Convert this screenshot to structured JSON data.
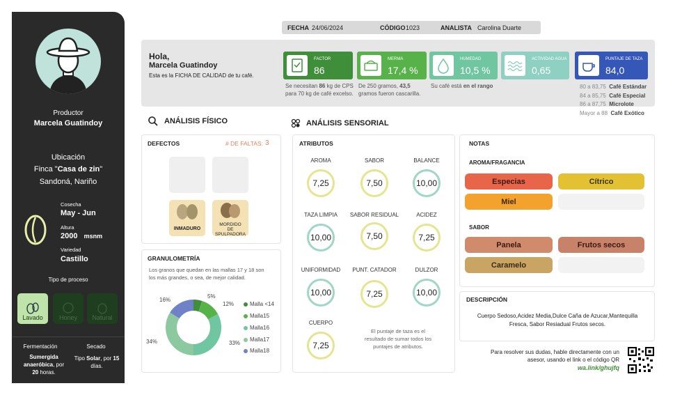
{
  "sidebar": {
    "productor_label": "Productor",
    "productor_name": "Marcela Guatindoy",
    "ubicacion_label": "Ubicación",
    "finca_prefix": "Finca \"",
    "finca_name": "Casa de zin",
    "finca_suffix": "\"",
    "municipio": "Sandoná, Nariño",
    "cosecha_label": "Cosecha",
    "cosecha_value": "May - Jun",
    "altura_label": "Altura",
    "altura_value": "2000",
    "altura_unit": "msnm",
    "variedad_label": "Variedad",
    "variedad_value": "Castillo",
    "proceso_label": "Tipo de proceso",
    "procesos": [
      "Lavado",
      "Honey",
      "Natural"
    ],
    "fermentacion_label": "Fermentación",
    "fermentacion_l1": "Sumergida",
    "fermentacion_l2a": "anaeróbica",
    "fermentacion_l2b": ", por",
    "fermentacion_l3a": "20",
    "fermentacion_l3b": " horas.",
    "secado_label": "Secado",
    "secado_l1a": "Tipo ",
    "secado_l1b": "Solar",
    "secado_l1c": ", por ",
    "secado_l1d": "15",
    "secado_l2": "días."
  },
  "topbar": {
    "fecha_label": "FECHA",
    "fecha_value": "24/06/2024",
    "codigo_label": "CÓDIGO",
    "codigo_value": "1023",
    "analista_label": "ANALISTA",
    "analista_value": "Carolina Duarte"
  },
  "header": {
    "greeting": "Hola,",
    "name": "Marcela Guatindoy",
    "subtitle": "Esta es la FICHA DE CALIDAD de tu café."
  },
  "kpis": [
    {
      "label": "FACTOR",
      "value": "86",
      "color": "#3f8e3a"
    },
    {
      "label": "MERMA",
      "value": "17,4 %",
      "color": "#58b24a"
    },
    {
      "label": "HUMEDAD",
      "value": "10,5 %",
      "color": "#6fc6a0"
    },
    {
      "label": "ACTIVIDAD AGUA",
      "value": "0,65",
      "color": "#8ed1c2"
    },
    {
      "label": "PUNTAJE DE TAZA",
      "value": "84,0",
      "color": "#3558b8"
    }
  ],
  "kpi_notes": {
    "factor_l1a": "Se necesitan ",
    "factor_l1b": "86",
    "factor_l1c": " kg de CPS",
    "factor_l2": "para 70 kg de café excelso.",
    "merma_l1a": "De 250 gramos, ",
    "merma_l1b": "43,5",
    "merma_l2": "gramos fueron cascarilla.",
    "humedad_a": "Su café está ",
    "humedad_b": "en el rango"
  },
  "scale": [
    {
      "range": "80 a 83,75",
      "name": "Café Estándar"
    },
    {
      "range": "84 a 85,75",
      "name": "Café Especial"
    },
    {
      "range": "86 a 87,75",
      "name": "Microlote"
    },
    {
      "range": "Mayor a 88",
      "name": "Café Exótico"
    }
  ],
  "fisico": {
    "title": "ANÁLISIS FÍSICO",
    "defectos_title": "DEFECTOS",
    "faltas_label": "# DE FALTAS:",
    "faltas_value": "3",
    "defect_1": "INMADURO",
    "defect_2_l1": "MORDIDO",
    "defect_2_l2": "DE SPULPADORA",
    "granulometria_title": "GRANULOMETRÍA",
    "granulometria_text_l1": "Los granos que quedan en las mallas 17 y 18 son",
    "granulometria_text_l2": "los más grandes, o sea, de mejor calidad."
  },
  "chart_data": {
    "type": "pie",
    "categories": [
      "Malla <14",
      "Malla15",
      "Malla16",
      "Malla17",
      "Malla18"
    ],
    "values": [
      5,
      12,
      33,
      34,
      16
    ],
    "labels": [
      "5%",
      "12%",
      "33%",
      "34%",
      "16%"
    ],
    "colors": [
      "#3f8e3a",
      "#58b24a",
      "#6fc6a0",
      "#8cc9a0",
      "#6f82c8"
    ],
    "legend": "right"
  },
  "sensorial": {
    "title": "ANÁLISIS SENSORIAL",
    "atributos_title": "ATRIBUTOS",
    "attrs": [
      {
        "label": "AROMA",
        "value": "7,25"
      },
      {
        "label": "SABOR",
        "value": "7,50"
      },
      {
        "label": "BALANCE",
        "value": "10,00"
      },
      {
        "label": "TAZA LIMPIA",
        "value": "10,00"
      },
      {
        "label": "SABOR RESIDUAL",
        "value": "7,50"
      },
      {
        "label": "ACIDEZ",
        "value": "7,25"
      },
      {
        "label": "UNIFORMIDAD",
        "value": "10,00"
      },
      {
        "label": "PUNT. CATADOR",
        "value": "7,25"
      },
      {
        "label": "DULZOR",
        "value": "10,00"
      },
      {
        "label": "CUERPO",
        "value": "7,25"
      }
    ],
    "note_l1": "El puntaje de taza es el",
    "note_l2": "resultado de sumar todos los",
    "note_l3": "puntajes de atributos."
  },
  "notas": {
    "title": "NOTAS",
    "aroma_title": "AROMA/FRAGANCIA",
    "aroma": [
      "Especias",
      "Cítrico",
      "Miel"
    ],
    "sabor_title": "SABOR",
    "sabor": [
      "Panela",
      "Frutos secos",
      "Caramelo"
    ]
  },
  "descripcion": {
    "title": "DESCRIPCIÓN",
    "l1": "Cuerpo Sedoso,Acidez Media,Dulce Caña de Azucar,Mantequilla",
    "l2": "Fresca, Sabor Resiadual Frutos secos."
  },
  "contacto": {
    "l1": "Para resolver sus dudas, hable directamente con un",
    "l2": "asesor, usando el link o el código QR",
    "link": "wa.link/ghujfq"
  }
}
